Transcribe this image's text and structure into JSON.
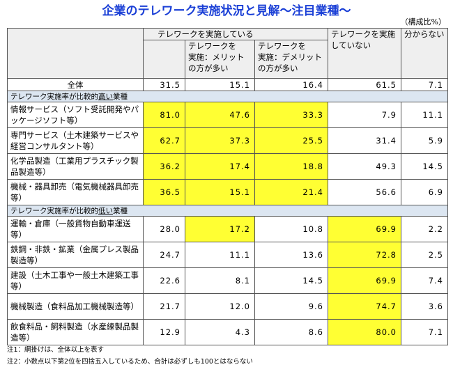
{
  "title": "企業のテレワーク実施状況と見解〜注目業種〜",
  "unit": "（構成比%）",
  "header": {
    "group": "テレワークを実施している",
    "merit": "テレワークを\n実施：メリット\nの方が多い",
    "demerit": "テレワークを\n実施：デメリット\nの方が多い",
    "not": "テレワークを実施\nしていない",
    "unknown": "分からない"
  },
  "total": {
    "label": "全体",
    "values": [
      "31.5",
      "15.1",
      "16.4",
      "61.5",
      "7.1"
    ]
  },
  "sections": [
    {
      "heading": [
        "テレワーク実施率が比較的",
        "高い",
        "業種"
      ],
      "rows": [
        {
          "label": "情報サービス（ソフト受託開発やパッケージソフト等）",
          "values": [
            "81.0",
            "47.6",
            "33.3",
            "7.9",
            "11.1"
          ],
          "highlight": [
            0,
            1,
            2
          ]
        },
        {
          "label": "専門サービス（土木建築サービスや経営コンサルタント等）",
          "values": [
            "62.7",
            "37.3",
            "25.5",
            "31.4",
            "5.9"
          ],
          "highlight": [
            0,
            1,
            2
          ]
        },
        {
          "label": "化学品製造（工業用プラスチック製品製造等）",
          "values": [
            "36.2",
            "17.4",
            "18.8",
            "49.3",
            "14.5"
          ],
          "highlight": [
            0,
            1,
            2
          ]
        },
        {
          "label": "機械・器具卸売（電気機械器具卸売等）",
          "values": [
            "36.5",
            "15.1",
            "21.4",
            "56.6",
            "6.9"
          ],
          "highlight": [
            0,
            1,
            2
          ]
        }
      ]
    },
    {
      "heading": [
        "テレワーク実施率が比較的",
        "低い",
        "業種"
      ],
      "rows": [
        {
          "label": "運輸・倉庫（一般貨物自動車運送等）",
          "values": [
            "28.0",
            "17.2",
            "10.8",
            "69.9",
            "2.2"
          ],
          "highlight": [
            1,
            3
          ]
        },
        {
          "label": "鉄鋼・非鉄・鉱業（金属プレス製品製造等）",
          "values": [
            "24.7",
            "11.1",
            "13.6",
            "72.8",
            "2.5"
          ],
          "highlight": [
            3
          ]
        },
        {
          "label": "建設（土木工事や一般土木建築工事等）",
          "values": [
            "22.6",
            "8.1",
            "14.5",
            "69.9",
            "7.4"
          ],
          "highlight": [
            3
          ]
        },
        {
          "label": "機械製造（食料品加工機械製造等）",
          "values": [
            "21.7",
            "12.0",
            "9.6",
            "74.7",
            "3.6"
          ],
          "highlight": [
            3
          ]
        },
        {
          "label": "飲食料品・飼料製造（水産練製品製造等）",
          "values": [
            "12.9",
            "4.3",
            "8.6",
            "80.0",
            "7.1"
          ],
          "highlight": [
            3
          ]
        }
      ]
    }
  ],
  "notes": [
    "注1：網掛けは、全体以上を表す",
    "注2：小数点以下第2位を四捨五入しているため、合計は必ずしも100とはならない"
  ]
}
